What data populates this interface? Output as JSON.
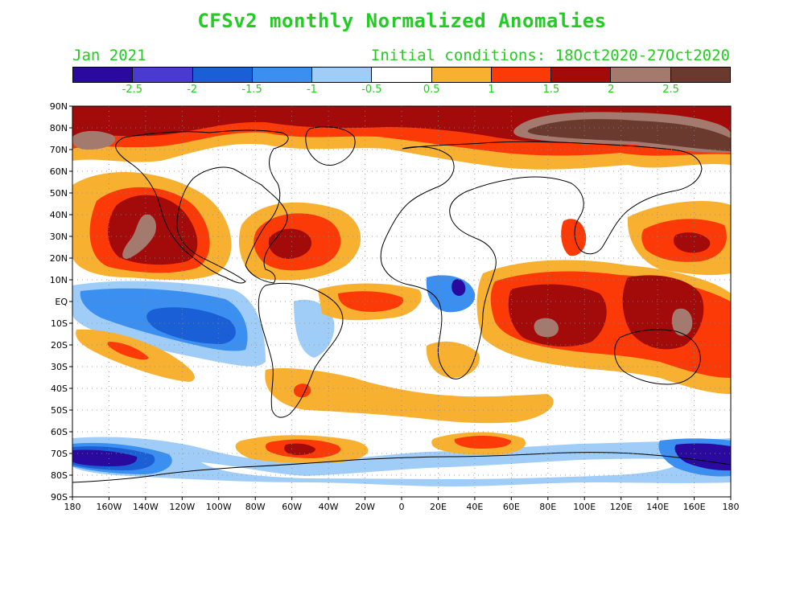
{
  "title": "CFSv2 monthly Normalized Anomalies",
  "valid_month": "Jan 2021",
  "initial_conditions": "Initial conditions: 18Oct2020-27Oct2020",
  "legend": {
    "colors": [
      "#2a0a9e",
      "#4a3ad0",
      "#1a5fd6",
      "#3a8ff0",
      "#9fcdf8",
      "#ffffff",
      "#f8b030",
      "#fb3a08",
      "#a30a0a",
      "#a57a6e",
      "#6a3a2e"
    ],
    "labels": [
      "-2.5",
      "-2",
      "-1.5",
      "-1",
      "-0.5",
      "0.5",
      "1",
      "1.5",
      "2",
      "2.5"
    ]
  },
  "axes": {
    "lat_labels": [
      "90N",
      "80N",
      "70N",
      "60N",
      "50N",
      "40N",
      "30N",
      "20N",
      "10N",
      "EQ",
      "10S",
      "20S",
      "30S",
      "40S",
      "50S",
      "60S",
      "70S",
      "80S",
      "90S"
    ],
    "lon_labels": [
      "180",
      "160W",
      "140W",
      "120W",
      "100W",
      "80W",
      "60W",
      "40W",
      "20W",
      "0",
      "20E",
      "40E",
      "60E",
      "80E",
      "100E",
      "120E",
      "140E",
      "160E",
      "180"
    ]
  },
  "map_regions": [
    {
      "name": "arctic-warm-band",
      "level": 8
    },
    {
      "name": "siberia-strong-warm",
      "level": 9
    },
    {
      "name": "ne-pacific-warm-core",
      "level": 9
    },
    {
      "name": "tropical-pacific-cold",
      "level": 3
    },
    {
      "name": "indian-ocean-warm",
      "level": 8
    },
    {
      "name": "maritime-continent-warm",
      "level": 8
    },
    {
      "name": "southern-ocean-cold-west",
      "level": 1
    },
    {
      "name": "southern-ocean-cold-east",
      "level": 1
    }
  ]
}
